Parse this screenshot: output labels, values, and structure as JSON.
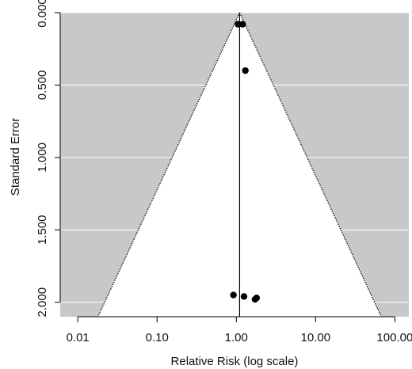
{
  "colors": {
    "panel_background": "#c8c8c8",
    "funnel_fill": "#ffffff",
    "gridline": "#ffffff",
    "points": "#000000",
    "lines": "#000000"
  },
  "chart_data": {
    "type": "scatter",
    "plot_kind": "funnel",
    "title": "",
    "xlabel": "Relative Risk (log scale)",
    "ylabel": "Standard Error",
    "x_scale": "log",
    "y_reversed": true,
    "xlim": [
      0.006,
      150
    ],
    "ylim": [
      0,
      2.1
    ],
    "x_ticks": [
      0.01,
      0.1,
      1,
      10,
      100
    ],
    "x_tick_labels": [
      "0.01",
      "0.10",
      "1.00",
      "10.00",
      "100.00"
    ],
    "y_ticks": [
      0,
      0.5,
      1,
      1.5,
      2
    ],
    "y_tick_labels": [
      "0.000",
      "0.500",
      "1.000",
      "1.500",
      "2.000"
    ],
    "grid": "horizontal",
    "pooled_estimate": 1.1,
    "funnel_confidence_z": 1.96,
    "points": [
      {
        "x": 1.05,
        "y": 0.08
      },
      {
        "x": 1.2,
        "y": 0.08
      },
      {
        "x": 1.3,
        "y": 0.4
      },
      {
        "x": 0.92,
        "y": 1.95
      },
      {
        "x": 1.25,
        "y": 1.96
      },
      {
        "x": 1.72,
        "y": 1.98
      },
      {
        "x": 1.8,
        "y": 1.97
      }
    ]
  }
}
